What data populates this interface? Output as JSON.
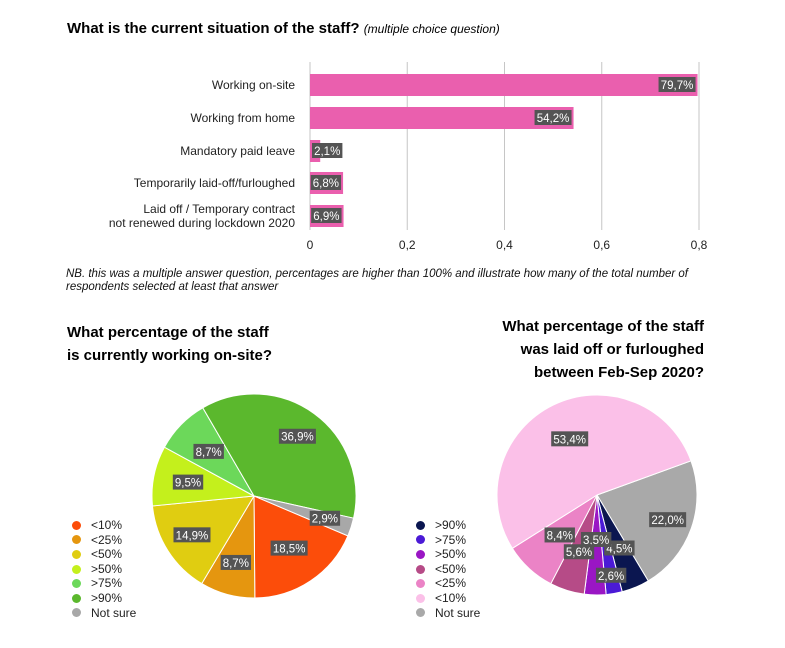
{
  "bar_section": {
    "title": "What is the current situation of the staff?",
    "subtitle": "(multiple choice question)",
    "note": "NB. this was a multiple answer question, percentages are higher than 100% and illustrate how many of the total number of respondents selected at least that answer"
  },
  "pie1_section": {
    "title_line1": "What percentage of the staff",
    "title_line2": "is currently working on-site?"
  },
  "pie2_section": {
    "title_line1": "What percentage of the staff",
    "title_line2": "was laid off or furloughed",
    "title_line3": "between Feb-Sep 2020?"
  },
  "chart_data": [
    {
      "type": "bar",
      "orientation": "horizontal",
      "title": "What is the current situation of the staff?",
      "subtitle": "(multiple choice question)",
      "categories": [
        [
          "Working on-site"
        ],
        [
          "Working from home"
        ],
        [
          "Mandatory paid leave"
        ],
        [
          "Temporarily laid-off/furloughed"
        ],
        [
          "Laid off / Temporary contract",
          "not renewed during lockdown 2020"
        ]
      ],
      "values": [
        0.797,
        0.542,
        0.021,
        0.068,
        0.069
      ],
      "labels": [
        "79,7%",
        "54,2%",
        "2,1%",
        "6,8%",
        "6,9%"
      ],
      "xlim": [
        0,
        0.8
      ],
      "xticks": [
        0,
        0.2,
        0.4,
        0.6,
        0.8
      ],
      "xtick_labels": [
        "0",
        "0,2",
        "0,4",
        "0,6",
        "0,8"
      ],
      "grid": true,
      "color": "#ea5fae"
    },
    {
      "type": "pie",
      "title": "What percentage of the staff is currently working on-site?",
      "slices": [
        {
          "name": "<10%",
          "value": 18.5,
          "label": "18,5%",
          "color": "#fc4d0a"
        },
        {
          "name": "<25%",
          "value": 8.7,
          "label": "8,7%",
          "color": "#e5960f"
        },
        {
          "name": "<50%",
          "value": 14.9,
          "label": "14,9%",
          "color": "#e0cd11"
        },
        {
          "name": ">50%",
          "value": 9.5,
          "label": "9,5%",
          "color": "#c4f01c"
        },
        {
          "name": ">75%",
          "value": 8.7,
          "label": "8,7%",
          "color": "#6cd85a"
        },
        {
          "name": ">90%",
          "value": 36.9,
          "label": "36,9%",
          "color": "#5bb82d"
        },
        {
          "name": "Not sure",
          "value": 2.9,
          "label": "2,9%",
          "color": "#a8a8a8"
        }
      ],
      "legend": [
        "<10%",
        "<25%",
        "<50%",
        ">50%",
        ">75%",
        ">90%",
        "Not sure"
      ],
      "legend_position": "bottom-left"
    },
    {
      "type": "pie",
      "title": "What percentage of the staff was laid off or furloughed between Feb-Sep 2020?",
      "slices": [
        {
          "name": "Not sure",
          "value": 22.0,
          "label": "22,0%",
          "color": "#a9a9a9"
        },
        {
          "name": ">90%",
          "value": 4.5,
          "label": "4,5%",
          "color": "#0b1650"
        },
        {
          "name": ">75%",
          "value": 2.6,
          "label": "2,6%",
          "color": "#4b1ad6"
        },
        {
          "name": ">50%",
          "value": 3.5,
          "label": "3,5%",
          "color": "#9a16c4"
        },
        {
          "name": "<50%",
          "value": 5.6,
          "label": "5,6%",
          "color": "#b64b87"
        },
        {
          "name": "<25%",
          "value": 8.4,
          "label": "8,4%",
          "color": "#eb83c6"
        },
        {
          "name": "<10%",
          "value": 53.4,
          "label": "53,4%",
          "color": "#fbc0e8"
        }
      ],
      "legend": [
        {
          "name": ">90%",
          "color": "#0b1650"
        },
        {
          "name": ">75%",
          "color": "#4b1ad6"
        },
        {
          "name": ">50%",
          "color": "#9a16c4"
        },
        {
          "name": "<50%",
          "color": "#b64b87"
        },
        {
          "name": "<25%",
          "color": "#eb83c6"
        },
        {
          "name": "<10%",
          "color": "#fbc0e8"
        },
        {
          "name": "Not sure",
          "color": "#a9a9a9"
        }
      ],
      "legend_position": "bottom-left"
    }
  ]
}
